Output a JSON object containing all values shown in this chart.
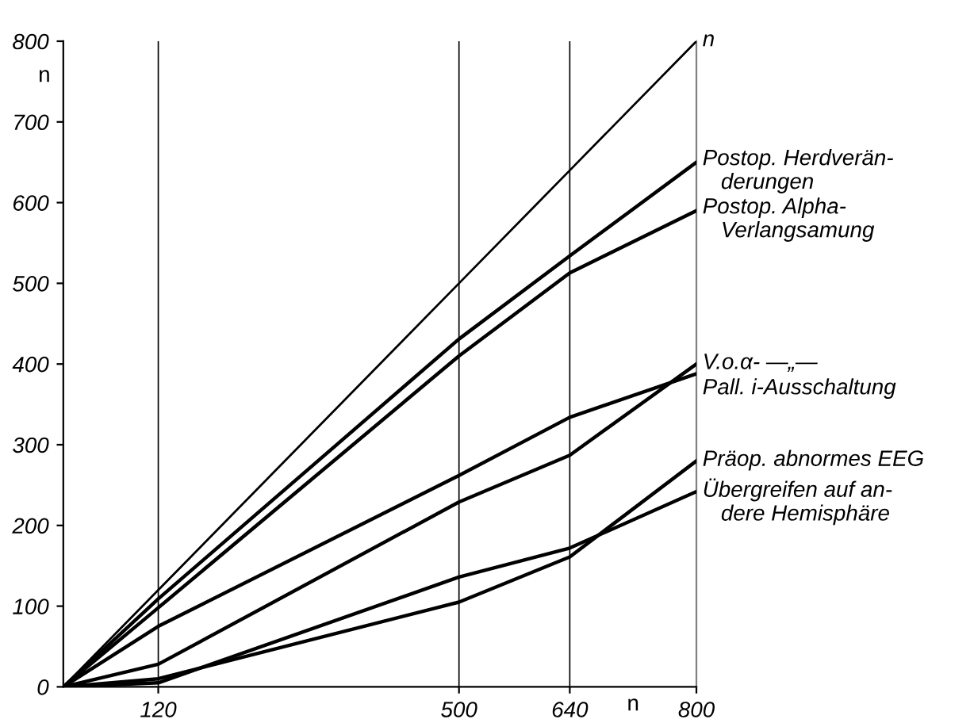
{
  "chart_data": {
    "type": "line",
    "xlabel": "n",
    "ylabel": "n",
    "x": [
      0,
      120,
      500,
      640,
      800
    ],
    "series": [
      {
        "name": "n",
        "color": "#000000",
        "values": [
          0,
          120,
          500,
          640,
          800
        ]
      },
      {
        "name": "Postop. Herdverän-\nderungen",
        "color": "#000000",
        "values": [
          0,
          109,
          431,
          534,
          650
        ]
      },
      {
        "name": "Postop. Alpha-\nVerlangsamung",
        "color": "#000000",
        "values": [
          0,
          98,
          410,
          513,
          590
        ]
      },
      {
        "name": "V.o.α- —„—",
        "color": "#000000",
        "values": [
          0,
          28,
          229,
          287,
          400
        ]
      },
      {
        "name": "Pall. i-Ausschaltung",
        "color": "#000000",
        "values": [
          0,
          75,
          262,
          334,
          388
        ]
      },
      {
        "name": "Präop. abnormes EEG",
        "color": "#000000",
        "values": [
          0,
          10,
          105,
          161,
          280
        ]
      },
      {
        "name": "Übergreifen auf an-\ndere Hemisphäre",
        "color": "#000000",
        "values": [
          0,
          5,
          136,
          172,
          242
        ]
      }
    ],
    "xlim": [
      0,
      800
    ],
    "ylim": [
      0,
      800
    ],
    "xticks": [
      120,
      500,
      640,
      800
    ],
    "yticks": [
      0,
      100,
      200,
      300,
      400,
      500,
      600,
      700,
      800
    ],
    "ref_lines": [
      {
        "axis": "x",
        "value": 120,
        "color": "#000000"
      },
      {
        "axis": "x",
        "value": 500,
        "color": "#000000"
      },
      {
        "axis": "x",
        "value": 640,
        "color": "#000000"
      }
    ],
    "grid": false,
    "legend": false,
    "marker": "none",
    "line_style": "solid"
  }
}
